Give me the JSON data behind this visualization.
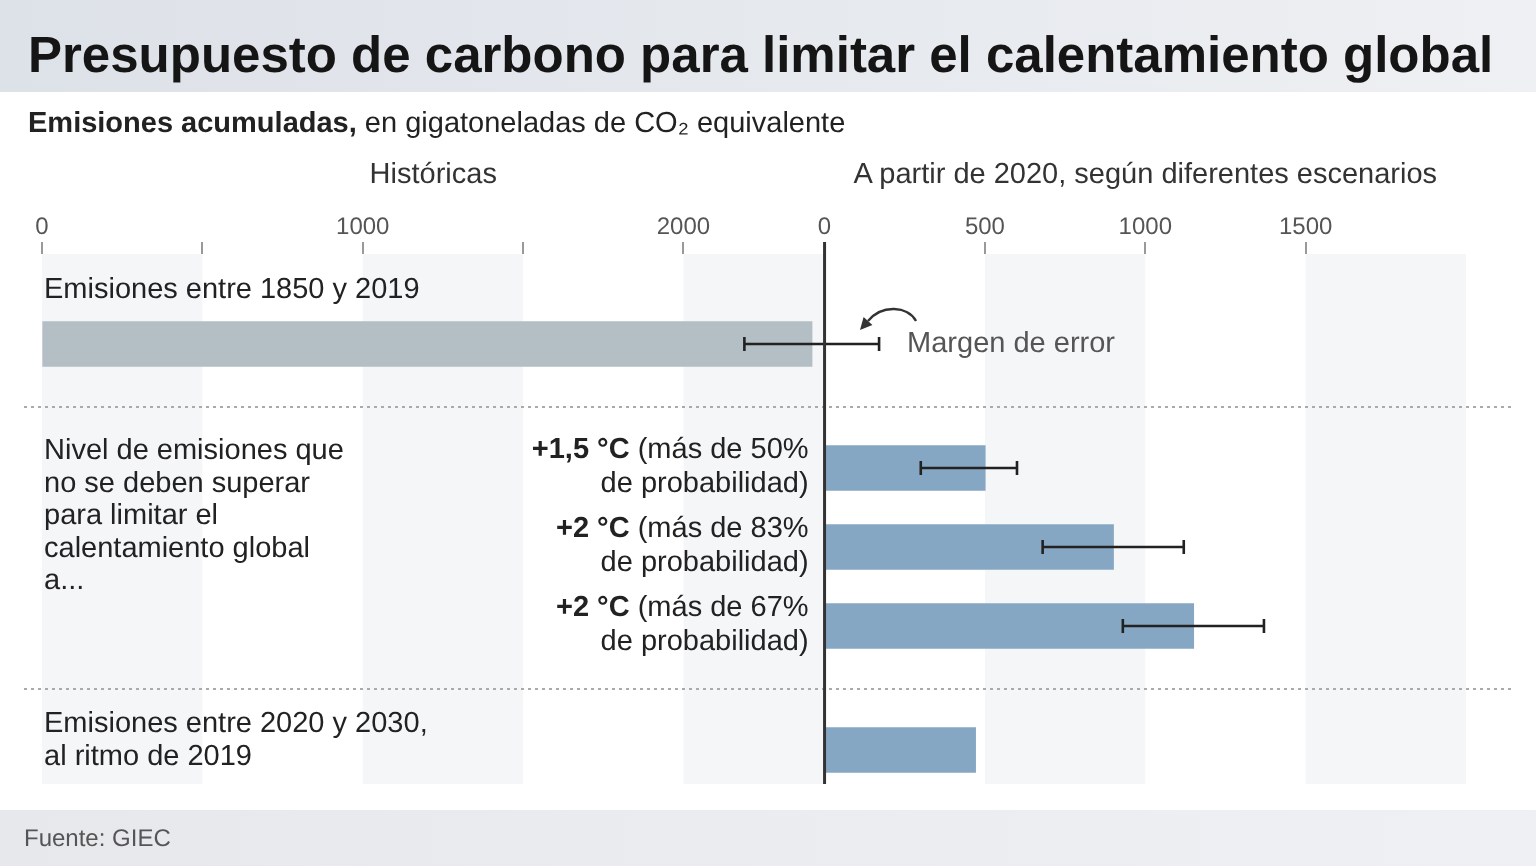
{
  "chart_data": {
    "type": "bar",
    "orientation": "horizontal",
    "title": "Presupuesto de carbono para limitar el calentamiento global",
    "subtitle": "Emisiones acumuladas, en gigatoneladas de CO₂ equivalente",
    "xlabel": "Históricas",
    "x2label": "A partir de 2020, según diferentes escenarios",
    "categories": [
      "Emisiones entre 1850 y 2019",
      "Nivel de emisiones que no se deben superar para limitar el calentamiento global a...",
      "Emisiones entre 2020 y 2030, al ritmo de 2019"
    ],
    "series": [
      {
        "color": "#b4bec5",
        "values": [
          2400,
          null,
          null
        ],
        "errors": [
          210,
          null,
          null
        ]
      },
      {
        "name": "+1,5 °C (más de 50% de probabilidad)",
        "color": "#86a7c3",
        "axis": "x2",
        "values": [
          null,
          500,
          null
        ],
        "errors": [
          null,
          [
            300,
            600
          ],
          null
        ]
      },
      {
        "name": "+2 °C (más de 83% de probabilidad)",
        "color": "#86a7c3",
        "axis": "x2",
        "values": [
          null,
          900,
          null
        ],
        "errors": [
          null,
          220,
          null
        ]
      },
      {
        "name": "+2 °C (más de 67% de probabilidad)",
        "color": "#86a7c3",
        "axis": "x2",
        "values": [
          null,
          1150,
          null
        ],
        "errors": [
          null,
          220,
          null
        ]
      },
      {
        "color": "#86a7c3",
        "axis": "x2",
        "values": [
          null,
          null,
          470
        ]
      }
    ],
    "xlim": [
      0,
      2440
    ],
    "xticks": [
      0,
      {
        "value": 500,
        "label": null
      },
      1000,
      {
        "value": 1500,
        "label": null
      },
      2000
    ],
    "x2lim": [
      0,
      2000
    ],
    "x2ticks": [
      0,
      500,
      1000,
      1500
    ],
    "grid": "y",
    "bands": [
      {
        "axis": "x",
        "from": 0,
        "to": 500,
        "color": "#f4f6f8"
      },
      {
        "axis": "x",
        "from": 1000,
        "to": 1500,
        "color": "#f4f6f8"
      },
      {
        "axis": "x",
        "from": 2000,
        "to": 2440,
        "color": "#f4f6f8"
      },
      {
        "axis": "x2",
        "from": 500,
        "to": 1000,
        "color": "#f4f6f8"
      },
      {
        "axis": "x2",
        "from": 1500,
        "to": 2000,
        "color": "#f4f6f8"
      }
    ],
    "annotations": [
      "Margen de error",
      "Fuente: GIEC"
    ]
  }
}
